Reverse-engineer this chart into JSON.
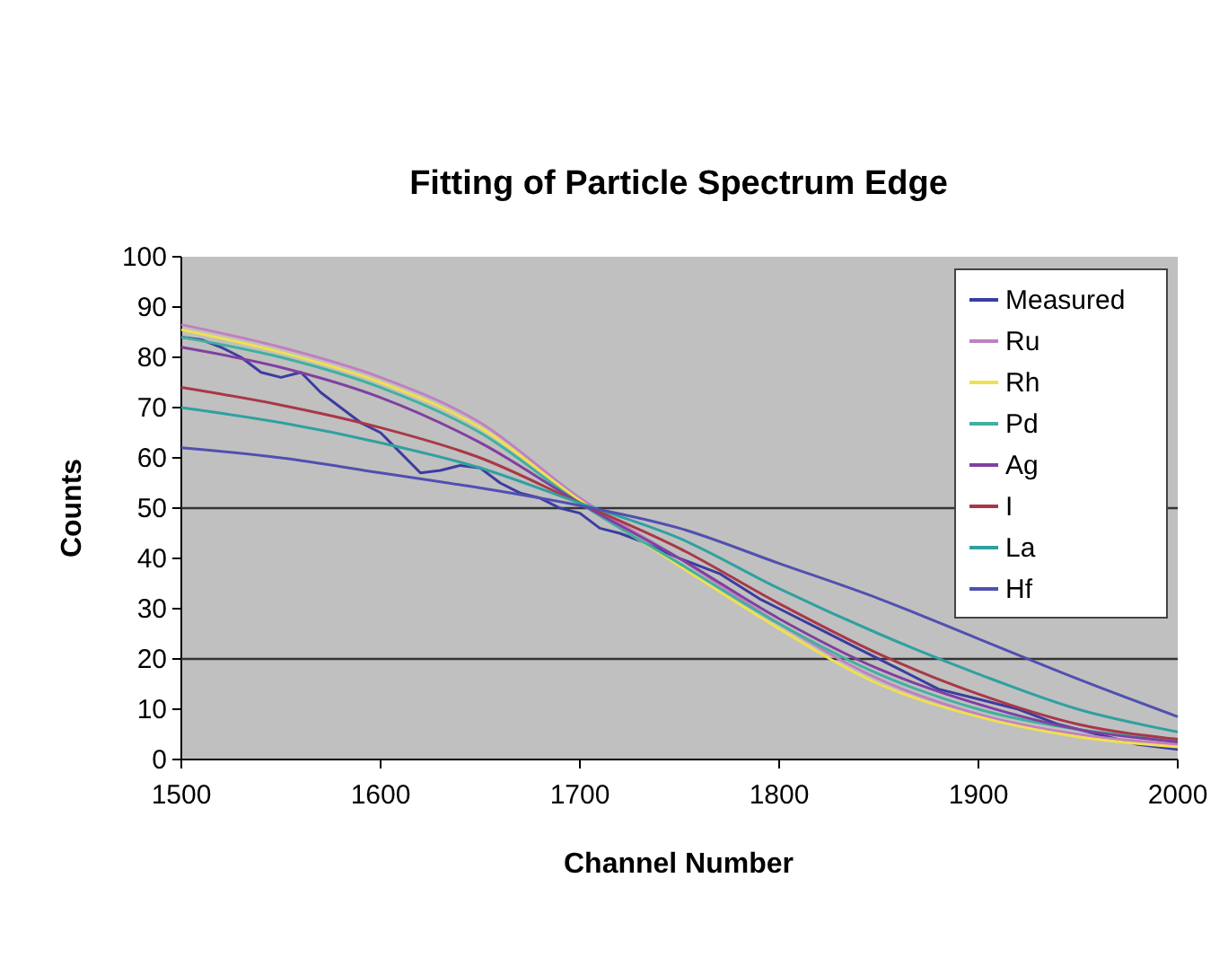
{
  "chart_data": {
    "type": "line",
    "title": "Fitting of Particle Spectrum Edge",
    "xlabel": "Channel Number",
    "ylabel": "Counts",
    "xlim": [
      1500,
      2000
    ],
    "xticks": [
      1500,
      1600,
      1700,
      1800,
      1900,
      2000
    ],
    "ylim": [
      0,
      100
    ],
    "yticks": [
      0,
      10,
      20,
      30,
      40,
      50,
      60,
      70,
      80,
      90,
      100
    ],
    "grid": false,
    "legend": "top right",
    "marker": "none",
    "line_style": "solid",
    "ref_lines": [
      {
        "axis": "y",
        "value": 50,
        "color": "#333333"
      },
      {
        "axis": "y",
        "value": 20,
        "color": "#333333"
      }
    ],
    "series": [
      {
        "name": "Measured",
        "color": "#3c3ca0",
        "x": [
          1500,
          1510,
          1520,
          1530,
          1540,
          1550,
          1560,
          1570,
          1580,
          1590,
          1600,
          1610,
          1620,
          1630,
          1640,
          1650,
          1660,
          1670,
          1680,
          1690,
          1700,
          1710,
          1720,
          1730,
          1750,
          1770,
          1790,
          1800,
          1820,
          1840,
          1860,
          1880,
          1900,
          1920,
          1940,
          1960,
          1980,
          2000
        ],
        "values": [
          84,
          83.5,
          82,
          80,
          77,
          76,
          77,
          73,
          70,
          67,
          65,
          61,
          57,
          57.5,
          58.5,
          58,
          55,
          53,
          52,
          50,
          49,
          46,
          45,
          43.5,
          40,
          37,
          32,
          30,
          26,
          22,
          18,
          14,
          12,
          10,
          7,
          5,
          3,
          2
        ]
      },
      {
        "name": "Ru",
        "color": "#c080c0",
        "values": [
          86.5,
          82,
          76,
          67,
          52,
          40,
          27,
          16,
          9,
          5,
          3
        ]
      },
      {
        "name": "Rh",
        "color": "#f0e050",
        "values": [
          85.5,
          81,
          75,
          66,
          51.5,
          38.5,
          26,
          15,
          8.5,
          4.5,
          2.5
        ]
      },
      {
        "name": "Pd",
        "color": "#40b0a0",
        "values": [
          84,
          80,
          74,
          65,
          51,
          39,
          27,
          17,
          10,
          6,
          4
        ]
      },
      {
        "name": "Ag",
        "color": "#8040a0",
        "values": [
          82,
          78,
          72,
          63,
          51,
          40,
          28,
          18,
          11,
          6,
          3.5
        ]
      },
      {
        "name": "I",
        "color": "#a83848",
        "values": [
          74,
          70.5,
          66,
          60,
          51,
          42,
          31,
          21,
          13,
          7,
          4
        ]
      },
      {
        "name": "La",
        "color": "#30a0a0",
        "values": [
          70,
          67,
          63,
          58,
          51,
          44,
          34,
          25,
          17,
          10,
          5.5
        ]
      },
      {
        "name": "Hf",
        "color": "#5050b0",
        "values": [
          62,
          60,
          57,
          54,
          50.5,
          46,
          39,
          32,
          24,
          16,
          8.5
        ]
      }
    ],
    "x": [
      1500,
      1550,
      1600,
      1650,
      1700,
      1750,
      1800,
      1850,
      1900,
      1950,
      2000
    ]
  }
}
